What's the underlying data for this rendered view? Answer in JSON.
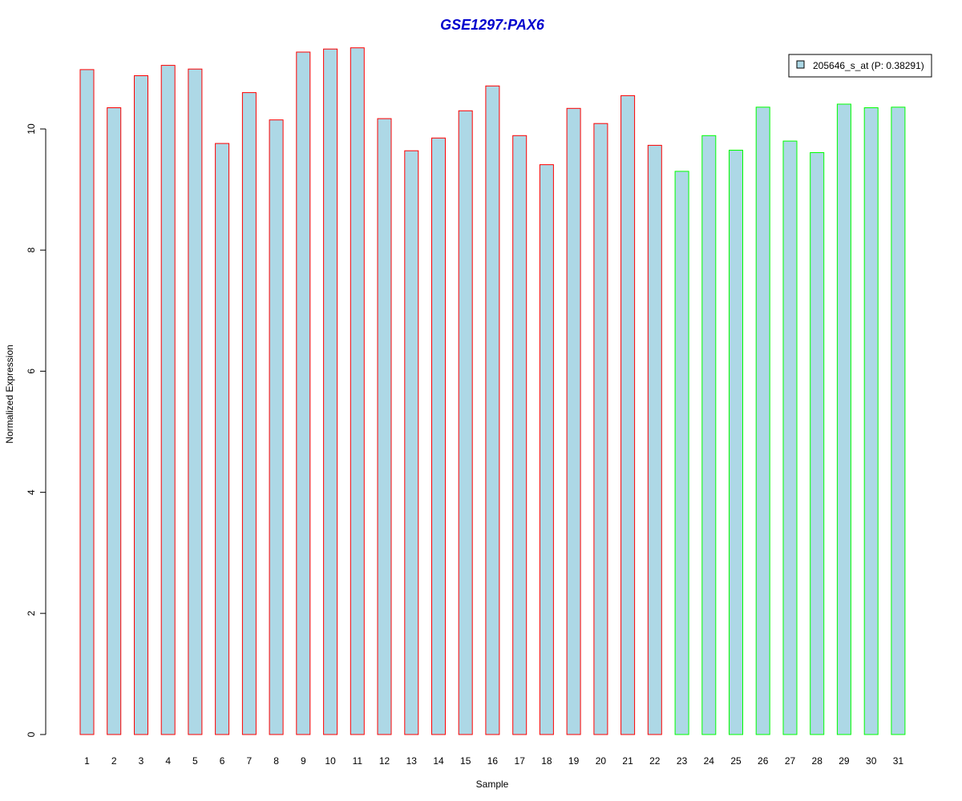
{
  "chart_data": {
    "type": "bar",
    "title": "GSE1297:PAX6",
    "xlabel": "Sample",
    "ylabel": "Normalized Expression",
    "ylim": [
      0,
      11.5
    ],
    "yticks": [
      0,
      2,
      4,
      6,
      8,
      10
    ],
    "categories": [
      "1",
      "2",
      "3",
      "4",
      "5",
      "6",
      "7",
      "8",
      "9",
      "10",
      "11",
      "12",
      "13",
      "14",
      "15",
      "16",
      "17",
      "18",
      "19",
      "20",
      "21",
      "22",
      "23",
      "24",
      "25",
      "26",
      "27",
      "28",
      "29",
      "30",
      "31"
    ],
    "values": [
      10.98,
      10.35,
      10.88,
      11.05,
      10.99,
      9.76,
      10.6,
      10.15,
      11.27,
      11.32,
      11.34,
      10.17,
      9.64,
      9.85,
      10.3,
      10.71,
      9.89,
      9.41,
      10.34,
      10.09,
      10.55,
      9.73,
      9.3,
      9.89,
      9.65,
      10.36,
      9.8,
      9.61,
      10.41,
      10.35,
      10.36
    ],
    "groups": [
      "red",
      "red",
      "red",
      "red",
      "red",
      "red",
      "red",
      "red",
      "red",
      "red",
      "red",
      "red",
      "red",
      "red",
      "red",
      "red",
      "red",
      "red",
      "red",
      "red",
      "red",
      "red",
      "green",
      "green",
      "green",
      "green",
      "green",
      "green",
      "green",
      "green",
      "green"
    ],
    "colors": {
      "fill": "#add8e6",
      "red": "#ff0000",
      "green": "#00ff00",
      "title": "#0000cd",
      "axis": "#000000"
    },
    "legend": {
      "position": "top-right",
      "label": "205646_s_at (P: 0.38291)"
    },
    "grid": false
  }
}
